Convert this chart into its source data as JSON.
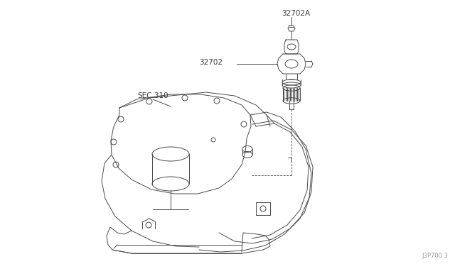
{
  "background_color": "#ffffff",
  "line_color": "#4a4a4a",
  "text_color": "#3a3a3a",
  "watermark": "J3P700 3",
  "label_32702A": "32702A",
  "label_32702": "32702",
  "label_sec310": "SEC.310",
  "figsize": [
    6.4,
    3.72
  ],
  "dpi": 100
}
